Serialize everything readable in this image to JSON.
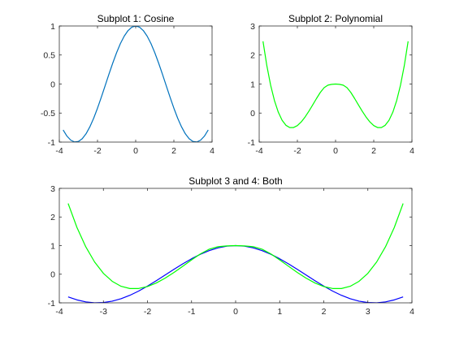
{
  "figure": {
    "background": "#ffffff"
  },
  "chart_data": [
    {
      "type": "line",
      "title": "Subplot 1: Cosine",
      "xlabel": "",
      "ylabel": "",
      "xlim": [
        -4,
        4
      ],
      "ylim": [
        -1,
        1
      ],
      "grid": false,
      "xticks": [
        -4,
        -2,
        0,
        2,
        4
      ],
      "xtick_labels": [
        "-4",
        "-2",
        "0",
        "2",
        "4"
      ],
      "yticks": [
        -1,
        -0.5,
        0,
        0.5,
        1
      ],
      "ytick_labels": [
        "-1",
        "-0.5",
        "0",
        "0.5",
        "1"
      ],
      "series": [
        {
          "color": "#0072BD",
          "x": [
            -3.8,
            -3.6,
            -3.4,
            -3.2,
            -3.0,
            -2.8,
            -2.6,
            -2.4,
            -2.2,
            -2.0,
            -1.8,
            -1.6,
            -1.4,
            -1.2,
            -1.0,
            -0.8,
            -0.6,
            -0.4,
            -0.2,
            0.0,
            0.2,
            0.4,
            0.6,
            0.8,
            1.0,
            1.2,
            1.4,
            1.6,
            1.8,
            2.0,
            2.2,
            2.4,
            2.6,
            2.8,
            3.0,
            3.2,
            3.4,
            3.6,
            3.8
          ],
          "y": [
            -0.791,
            -0.897,
            -0.967,
            -0.998,
            -0.99,
            -0.942,
            -0.857,
            -0.737,
            -0.589,
            -0.416,
            -0.227,
            -0.029,
            0.17,
            0.362,
            0.54,
            0.697,
            0.825,
            0.921,
            0.98,
            1.0,
            0.98,
            0.921,
            0.825,
            0.697,
            0.54,
            0.362,
            0.17,
            -0.029,
            -0.227,
            -0.416,
            -0.589,
            -0.737,
            -0.857,
            -0.942,
            -0.99,
            -0.998,
            -0.967,
            -0.897,
            -0.791
          ]
        }
      ]
    },
    {
      "type": "line",
      "title": "Subplot 2: Polynomial",
      "xlabel": "",
      "ylabel": "",
      "xlim": [
        -4,
        4
      ],
      "ylim": [
        -1,
        3
      ],
      "grid": false,
      "xticks": [
        -4,
        -2,
        0,
        2,
        4
      ],
      "xtick_labels": [
        "-4",
        "-2",
        "0",
        "2",
        "4"
      ],
      "yticks": [
        -1,
        0,
        1,
        2,
        3
      ],
      "ytick_labels": [
        "-1",
        "0",
        "1",
        "2",
        "3"
      ],
      "series": [
        {
          "color": "#00FF00",
          "x": [
            -3.8,
            -3.6,
            -3.4,
            -3.2,
            -3.0,
            -2.8,
            -2.6,
            -2.4,
            -2.2,
            -2.0,
            -1.8,
            -1.6,
            -1.4,
            -1.2,
            -1.0,
            -0.8,
            -0.6,
            -0.4,
            -0.2,
            0.0,
            0.2,
            0.4,
            0.6,
            0.8,
            1.0,
            1.2,
            1.4,
            1.6,
            1.8,
            2.0,
            2.2,
            2.4,
            2.6,
            2.8,
            3.0,
            3.2,
            3.4,
            3.6,
            3.8
          ],
          "y": [
            2.472,
            1.635,
            0.959,
            0.429,
            0.031,
            -0.248,
            -0.421,
            -0.5,
            -0.499,
            -0.431,
            -0.307,
            -0.139,
            0.06,
            0.278,
            0.5,
            0.71,
            0.874,
            0.961,
            0.99,
            1.0,
            0.99,
            0.961,
            0.874,
            0.71,
            0.5,
            0.278,
            0.06,
            -0.139,
            -0.307,
            -0.431,
            -0.499,
            -0.5,
            -0.421,
            -0.248,
            0.031,
            0.429,
            0.959,
            1.635,
            2.472
          ]
        }
      ]
    },
    {
      "type": "line",
      "title": "Subplot 3 and 4: Both",
      "xlabel": "",
      "ylabel": "",
      "xlim": [
        -4,
        4
      ],
      "ylim": [
        -1,
        3
      ],
      "grid": false,
      "xticks": [
        -4,
        -3,
        -2,
        -1,
        0,
        1,
        2,
        3,
        4
      ],
      "xtick_labels": [
        "-4",
        "-3",
        "-2",
        "-1",
        "0",
        "1",
        "2",
        "3",
        "4"
      ],
      "yticks": [
        -1,
        0,
        1,
        2,
        3
      ],
      "ytick_labels": [
        "-1",
        "0",
        "1",
        "2",
        "3"
      ],
      "series": [
        {
          "color": "#0000FF",
          "x": [
            -3.8,
            -3.6,
            -3.4,
            -3.2,
            -3.0,
            -2.8,
            -2.6,
            -2.4,
            -2.2,
            -2.0,
            -1.8,
            -1.6,
            -1.4,
            -1.2,
            -1.0,
            -0.8,
            -0.6,
            -0.4,
            -0.2,
            0.0,
            0.2,
            0.4,
            0.6,
            0.8,
            1.0,
            1.2,
            1.4,
            1.6,
            1.8,
            2.0,
            2.2,
            2.4,
            2.6,
            2.8,
            3.0,
            3.2,
            3.4,
            3.6,
            3.8
          ],
          "y": [
            -0.791,
            -0.897,
            -0.967,
            -0.998,
            -0.99,
            -0.942,
            -0.857,
            -0.737,
            -0.589,
            -0.416,
            -0.227,
            -0.029,
            0.17,
            0.362,
            0.54,
            0.697,
            0.825,
            0.921,
            0.98,
            1.0,
            0.98,
            0.921,
            0.825,
            0.697,
            0.54,
            0.362,
            0.17,
            -0.029,
            -0.227,
            -0.416,
            -0.589,
            -0.737,
            -0.857,
            -0.942,
            -0.99,
            -0.998,
            -0.967,
            -0.897,
            -0.791
          ]
        },
        {
          "color": "#00FF00",
          "x": [
            -3.8,
            -3.6,
            -3.4,
            -3.2,
            -3.0,
            -2.8,
            -2.6,
            -2.4,
            -2.2,
            -2.0,
            -1.8,
            -1.6,
            -1.4,
            -1.2,
            -1.0,
            -0.8,
            -0.6,
            -0.4,
            -0.2,
            0.0,
            0.2,
            0.4,
            0.6,
            0.8,
            1.0,
            1.2,
            1.4,
            1.6,
            1.8,
            2.0,
            2.2,
            2.4,
            2.6,
            2.8,
            3.0,
            3.2,
            3.4,
            3.6,
            3.8
          ],
          "y": [
            2.472,
            1.635,
            0.959,
            0.429,
            0.031,
            -0.248,
            -0.421,
            -0.5,
            -0.499,
            -0.431,
            -0.307,
            -0.139,
            0.06,
            0.278,
            0.5,
            0.71,
            0.874,
            0.961,
            0.99,
            1.0,
            0.99,
            0.961,
            0.874,
            0.71,
            0.5,
            0.278,
            0.06,
            -0.139,
            -0.307,
            -0.431,
            -0.499,
            -0.5,
            -0.421,
            -0.248,
            0.031,
            0.429,
            0.959,
            1.635,
            2.472
          ]
        }
      ]
    }
  ]
}
